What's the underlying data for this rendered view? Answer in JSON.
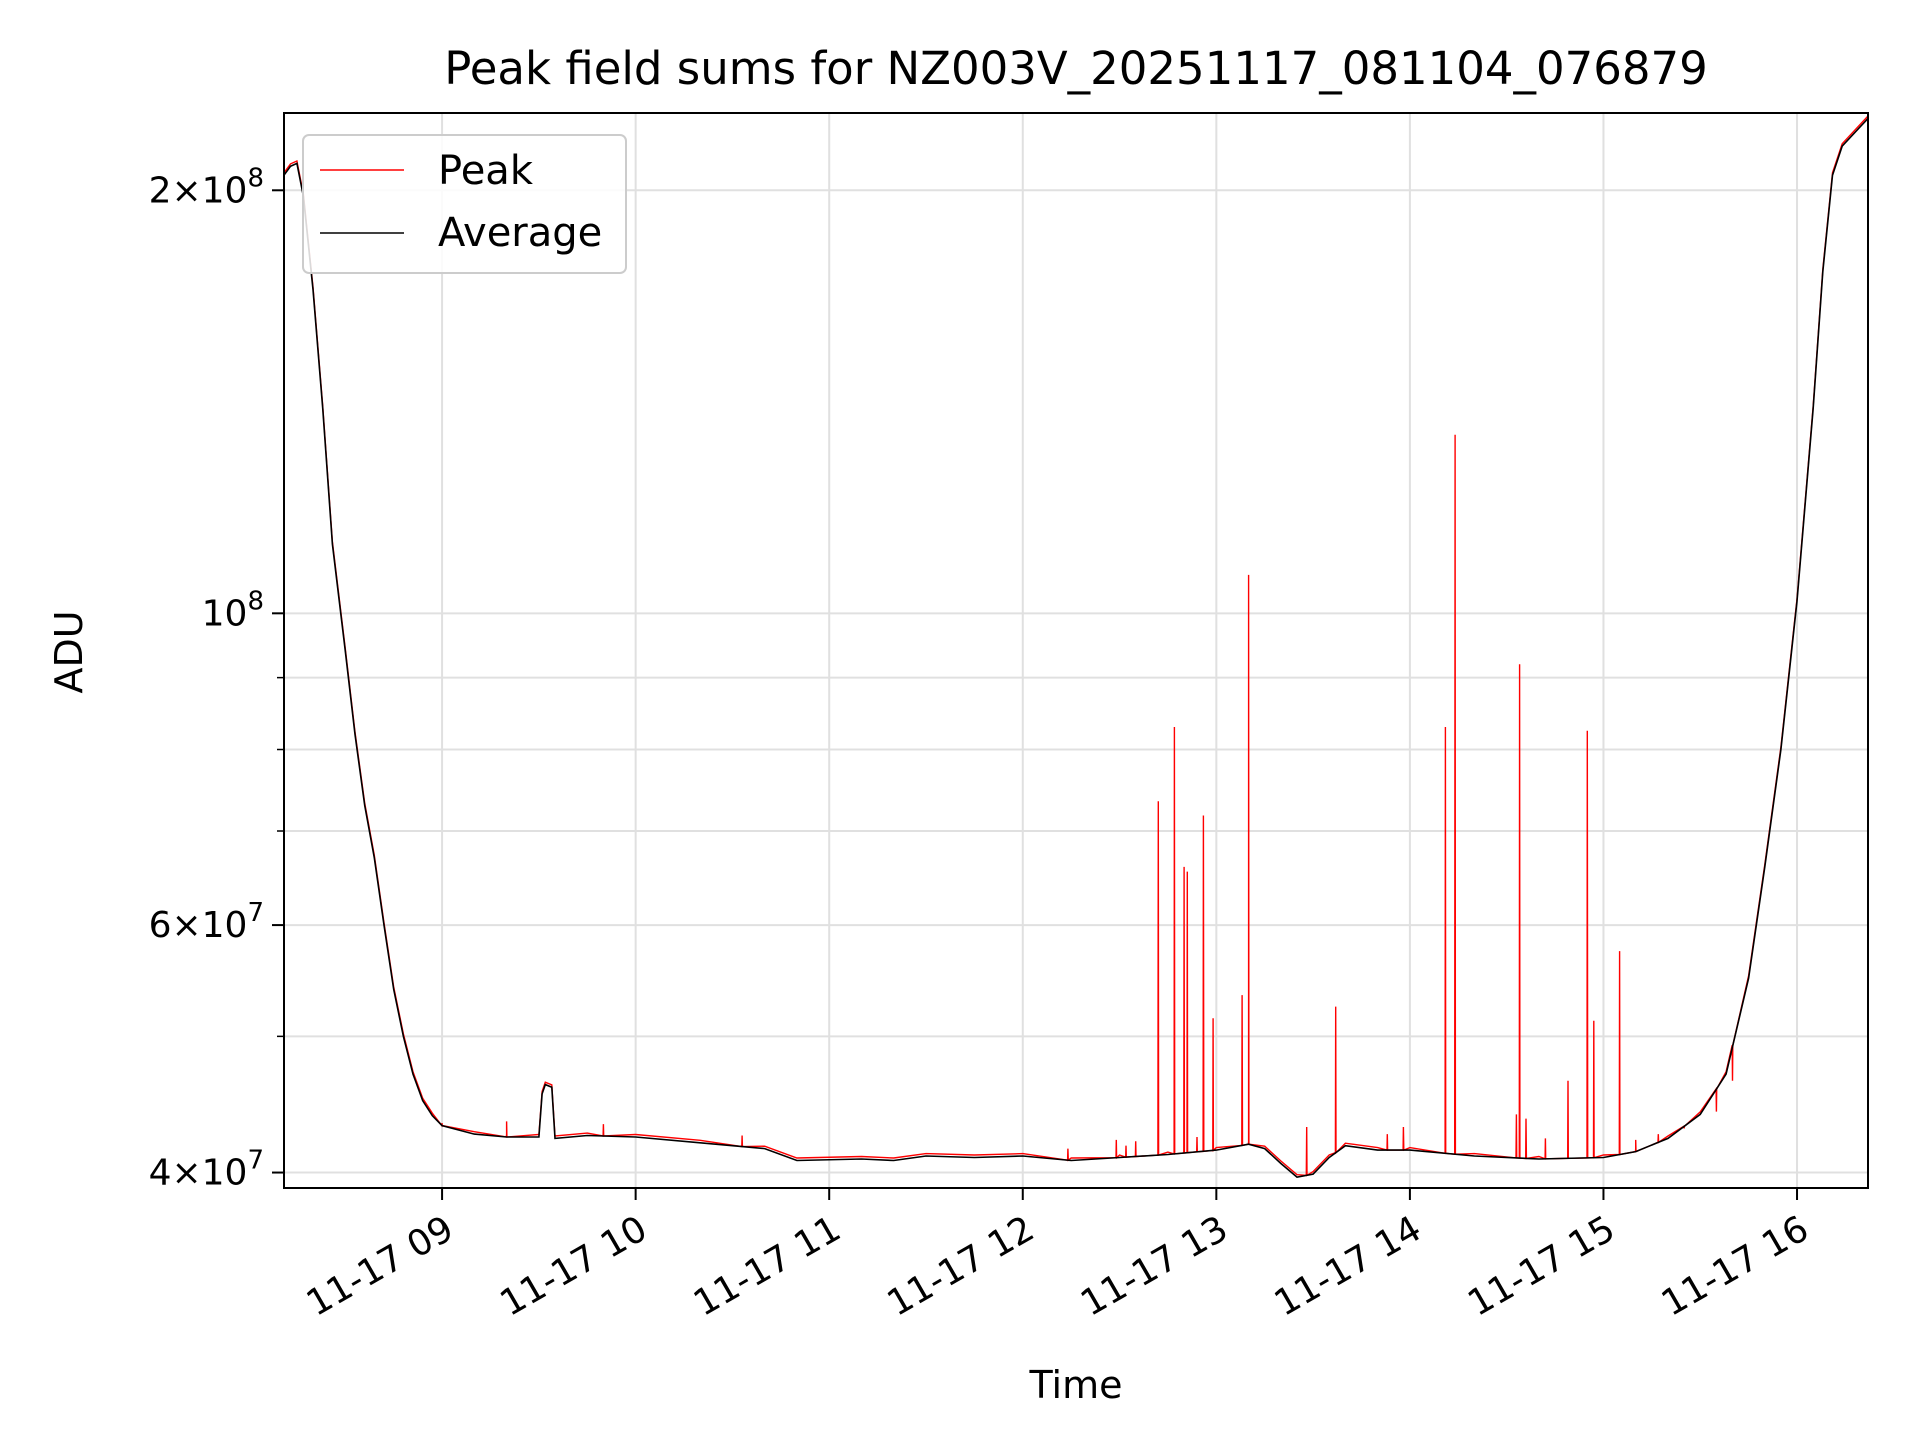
{
  "chart_data": {
    "type": "line",
    "title": "Peak field sums for NZ003V_20251117_081104_076879",
    "xlabel": "Time",
    "ylabel": "ADU",
    "yscale": "log",
    "ylim": [
      39000000,
      227000000
    ],
    "xlim": [
      "2025-11-17 08:11",
      "2025-11-17 16:22"
    ],
    "grid": true,
    "legend_position": "upper-left",
    "x_ticks": [
      {
        "t": "2025-11-17 09:00",
        "label": "11-17 09"
      },
      {
        "t": "2025-11-17 10:00",
        "label": "11-17 10"
      },
      {
        "t": "2025-11-17 11:00",
        "label": "11-17 11"
      },
      {
        "t": "2025-11-17 12:00",
        "label": "11-17 12"
      },
      {
        "t": "2025-11-17 13:00",
        "label": "11-17 13"
      },
      {
        "t": "2025-11-17 14:00",
        "label": "11-17 14"
      },
      {
        "t": "2025-11-17 15:00",
        "label": "11-17 15"
      },
      {
        "t": "2025-11-17 16:00",
        "label": "11-17 16"
      }
    ],
    "y_ticks": [
      {
        "v": 40000000,
        "base": "4",
        "exp": "7"
      },
      {
        "v": 60000000,
        "base": "6",
        "exp": "7"
      },
      {
        "v": 100000000,
        "base": "",
        "exp": "8"
      },
      {
        "v": 200000000,
        "base": "2",
        "exp": "8"
      }
    ],
    "y_minor_ticks": [
      50000000,
      70000000,
      80000000,
      90000000
    ],
    "series": [
      {
        "name": "Average",
        "color": "#000000",
        "points": [
          [
            "2025-11-17 08:11",
            205000000
          ],
          [
            "2025-11-17 08:13",
            208000000
          ],
          [
            "2025-11-17 08:15",
            209000000
          ],
          [
            "2025-11-17 08:17",
            198000000
          ],
          [
            "2025-11-17 08:20",
            170000000
          ],
          [
            "2025-11-17 08:23",
            140000000
          ],
          [
            "2025-11-17 08:26",
            112000000
          ],
          [
            "2025-11-17 08:30",
            94000000
          ],
          [
            "2025-11-17 08:33",
            82000000
          ],
          [
            "2025-11-17 08:36",
            73000000
          ],
          [
            "2025-11-17 08:39",
            67000000
          ],
          [
            "2025-11-17 08:42",
            60000000
          ],
          [
            "2025-11-17 08:45",
            54000000
          ],
          [
            "2025-11-17 08:48",
            50000000
          ],
          [
            "2025-11-17 08:51",
            47000000
          ],
          [
            "2025-11-17 08:54",
            45000000
          ],
          [
            "2025-11-17 08:57",
            43900000
          ],
          [
            "2025-11-17 09:00",
            43200000
          ],
          [
            "2025-11-17 09:10",
            42600000
          ],
          [
            "2025-11-17 09:20",
            42400000
          ],
          [
            "2025-11-17 09:30",
            42400000
          ],
          [
            "2025-11-17 09:31",
            45500000
          ],
          [
            "2025-11-17 09:32",
            46200000
          ],
          [
            "2025-11-17 09:34",
            46000000
          ],
          [
            "2025-11-17 09:35",
            42300000
          ],
          [
            "2025-11-17 09:45",
            42500000
          ],
          [
            "2025-11-17 10:00",
            42400000
          ],
          [
            "2025-11-17 10:20",
            42000000
          ],
          [
            "2025-11-17 10:40",
            41600000
          ],
          [
            "2025-11-17 10:50",
            40800000
          ],
          [
            "2025-11-17 11:10",
            40900000
          ],
          [
            "2025-11-17 11:20",
            40800000
          ],
          [
            "2025-11-17 11:30",
            41100000
          ],
          [
            "2025-11-17 11:45",
            41000000
          ],
          [
            "2025-11-17 12:00",
            41100000
          ],
          [
            "2025-11-17 12:15",
            40800000
          ],
          [
            "2025-11-17 12:30",
            41000000
          ],
          [
            "2025-11-17 12:45",
            41200000
          ],
          [
            "2025-11-17 13:00",
            41500000
          ],
          [
            "2025-11-17 13:10",
            41900000
          ],
          [
            "2025-11-17 13:15",
            41600000
          ],
          [
            "2025-11-17 13:20",
            40600000
          ],
          [
            "2025-11-17 13:25",
            39700000
          ],
          [
            "2025-11-17 13:30",
            39900000
          ],
          [
            "2025-11-17 13:35",
            41000000
          ],
          [
            "2025-11-17 13:40",
            41800000
          ],
          [
            "2025-11-17 13:50",
            41500000
          ],
          [
            "2025-11-17 14:00",
            41500000
          ],
          [
            "2025-11-17 14:20",
            41100000
          ],
          [
            "2025-11-17 14:40",
            40900000
          ],
          [
            "2025-11-17 15:00",
            41000000
          ],
          [
            "2025-11-17 15:10",
            41400000
          ],
          [
            "2025-11-17 15:20",
            42300000
          ],
          [
            "2025-11-17 15:30",
            44000000
          ],
          [
            "2025-11-17 15:38",
            47000000
          ],
          [
            "2025-11-17 15:45",
            55000000
          ],
          [
            "2025-11-17 15:50",
            66000000
          ],
          [
            "2025-11-17 15:55",
            80000000
          ],
          [
            "2025-11-17 16:00",
            102000000
          ],
          [
            "2025-11-17 16:05",
            140000000
          ],
          [
            "2025-11-17 16:08",
            175000000
          ],
          [
            "2025-11-17 16:11",
            205000000
          ],
          [
            "2025-11-17 16:14",
            215000000
          ],
          [
            "2025-11-17 16:22",
            225000000
          ]
        ]
      },
      {
        "name": "Peak",
        "color": "#ff0000",
        "spikes": [
          [
            "2025-11-17 09:00",
            43300000
          ],
          [
            "2025-11-17 09:20",
            43500000
          ],
          [
            "2025-11-17 09:50",
            43300000
          ],
          [
            "2025-11-17 10:33",
            42500000
          ],
          [
            "2025-11-17 12:14",
            41600000
          ],
          [
            "2025-11-17 12:29",
            42200000
          ],
          [
            "2025-11-17 12:32",
            41800000
          ],
          [
            "2025-11-17 12:35",
            42100000
          ],
          [
            "2025-11-17 12:42",
            73500000
          ],
          [
            "2025-11-17 12:47",
            83000000
          ],
          [
            "2025-11-17 12:50",
            66000000
          ],
          [
            "2025-11-17 12:51",
            65500000
          ],
          [
            "2025-11-17 12:54",
            42400000
          ],
          [
            "2025-11-17 12:56",
            71800000
          ],
          [
            "2025-11-17 12:59",
            51500000
          ],
          [
            "2025-11-17 13:08",
            53500000
          ],
          [
            "2025-11-17 13:10",
            106500000
          ],
          [
            "2025-11-17 13:28",
            43100000
          ],
          [
            "2025-11-17 13:37",
            52500000
          ],
          [
            "2025-11-17 13:53",
            42600000
          ],
          [
            "2025-11-17 13:58",
            43100000
          ],
          [
            "2025-11-17 14:11",
            83000000
          ],
          [
            "2025-11-17 14:14",
            134000000
          ],
          [
            "2025-11-17 14:33",
            44000000
          ],
          [
            "2025-11-17 14:34",
            92000000
          ],
          [
            "2025-11-17 14:36",
            43700000
          ],
          [
            "2025-11-17 14:42",
            42300000
          ],
          [
            "2025-11-17 14:49",
            46500000
          ],
          [
            "2025-11-17 14:55",
            82500000
          ],
          [
            "2025-11-17 14:57",
            51300000
          ],
          [
            "2025-11-17 15:05",
            57500000
          ],
          [
            "2025-11-17 15:10",
            42200000
          ],
          [
            "2025-11-17 15:17",
            42600000
          ],
          [
            "2025-11-17 15:25",
            43000000
          ],
          [
            "2025-11-17 15:35",
            44200000
          ],
          [
            "2025-11-17 15:40",
            46500000
          ]
        ]
      }
    ]
  }
}
